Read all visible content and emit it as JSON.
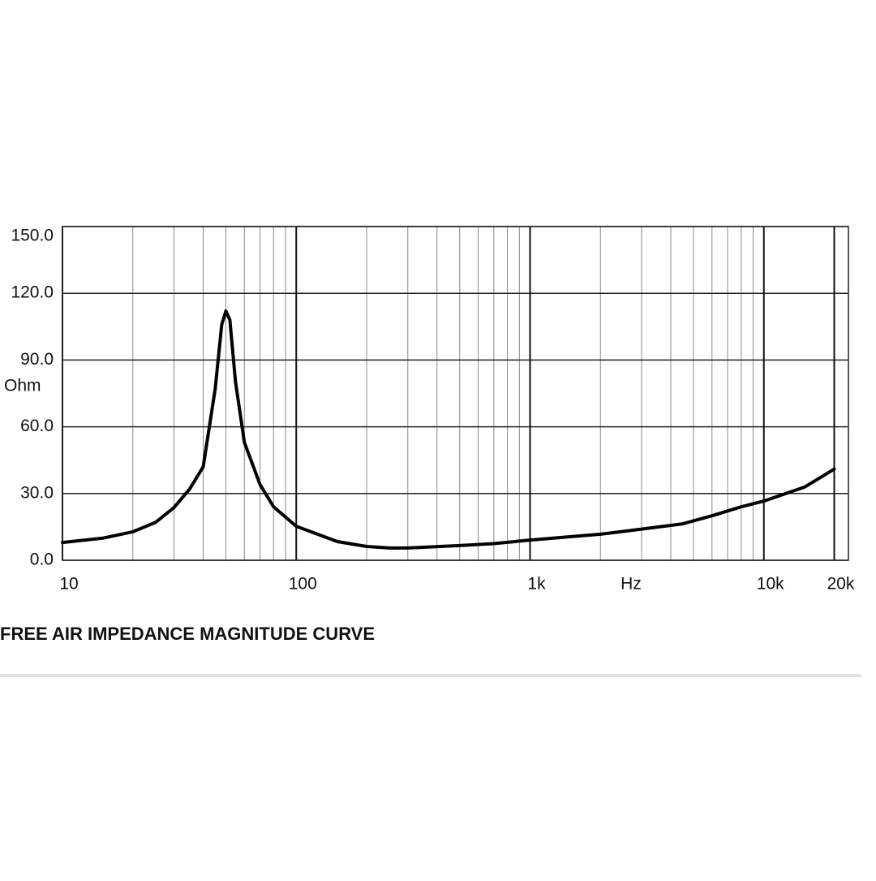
{
  "chart_data": {
    "type": "line",
    "title": "FREE AIR IMPEDANCE MAGNITUDE CURVE",
    "y_label": "Ohm",
    "x_label": "Hz",
    "x": [
      10,
      15,
      20,
      25,
      30,
      35,
      40,
      45,
      48,
      50,
      52,
      55,
      60,
      70,
      80,
      100,
      150,
      200,
      250,
      300,
      500,
      700,
      1000,
      2000,
      3000,
      4500,
      6000,
      8000,
      10000,
      15000,
      20000
    ],
    "values": [
      8,
      10,
      12.8,
      17,
      23.7,
      32,
      42,
      77,
      106,
      112,
      108,
      80,
      53,
      34,
      24,
      15.3,
      8.4,
      6.2,
      5.5,
      5.5,
      6.6,
      7.5,
      9.1,
      11.7,
      14,
      16.4,
      20,
      24,
      26.6,
      33,
      41
    ],
    "color": "#000000",
    "xlog": true,
    "xlim": [
      10,
      23000
    ],
    "ylim": [
      0,
      150
    ],
    "xticks": [
      10,
      100,
      {
        "value": 1000,
        "label": "1k"
      },
      {
        "value": 10000,
        "label": "10k"
      },
      {
        "value": 20000,
        "label": "20k"
      }
    ],
    "yticks": [
      {
        "value": 0,
        "label": "0.0"
      },
      {
        "value": 30,
        "label": "30.0"
      },
      {
        "value": 60,
        "label": "60.0"
      },
      {
        "value": 90,
        "label": "90.0"
      },
      {
        "value": 120,
        "label": "120.0"
      },
      {
        "value": 150,
        "label": "150.0"
      }
    ],
    "xgrid": [
      20,
      30,
      40,
      50,
      60,
      70,
      80,
      90,
      200,
      300,
      400,
      500,
      600,
      700,
      800,
      900,
      2000,
      3000,
      4000,
      5000,
      6000,
      7000,
      8000,
      9000
    ],
    "grid": true
  }
}
